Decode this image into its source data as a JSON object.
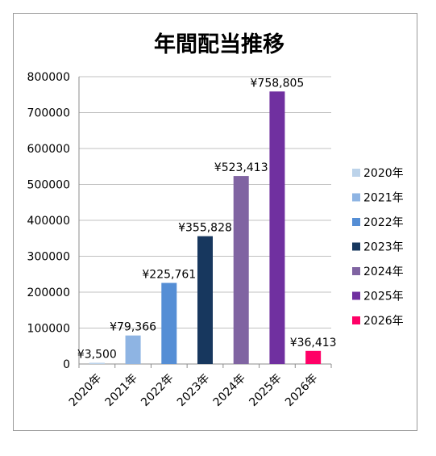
{
  "chart_data": {
    "type": "bar",
    "title": "年間配当推移",
    "xlabel": "",
    "ylabel": "",
    "categories": [
      "2020年",
      "2021年",
      "2022年",
      "2023年",
      "2024年",
      "2025年",
      "2026年"
    ],
    "values": [
      3500,
      79366,
      225761,
      355828,
      523413,
      758805,
      36413
    ],
    "data_labels": [
      "¥3,500",
      "¥79,366",
      "¥225,761",
      "¥355,828",
      "¥523,413",
      "¥758,805",
      "¥36,413"
    ],
    "colors": [
      "#bcd3ea",
      "#8eb4e3",
      "#558ed5",
      "#17375e",
      "#8064a2",
      "#7030a0",
      "#ff0066"
    ],
    "ylim": [
      0,
      800000
    ],
    "yticks": [
      "0",
      "100000",
      "200000",
      "300000",
      "400000",
      "500000",
      "600000",
      "700000",
      "800000"
    ],
    "ytick_values": [
      0,
      100000,
      200000,
      300000,
      400000,
      500000,
      600000,
      700000,
      800000
    ],
    "grid": true,
    "legend": "right",
    "legend_entries": [
      "2020年",
      "2021年",
      "2022年",
      "2023年",
      "2024年",
      "2025年",
      "2026年"
    ],
    "gridline_color": "#c0c0c0",
    "axis_color": "#8c8c8c"
  }
}
